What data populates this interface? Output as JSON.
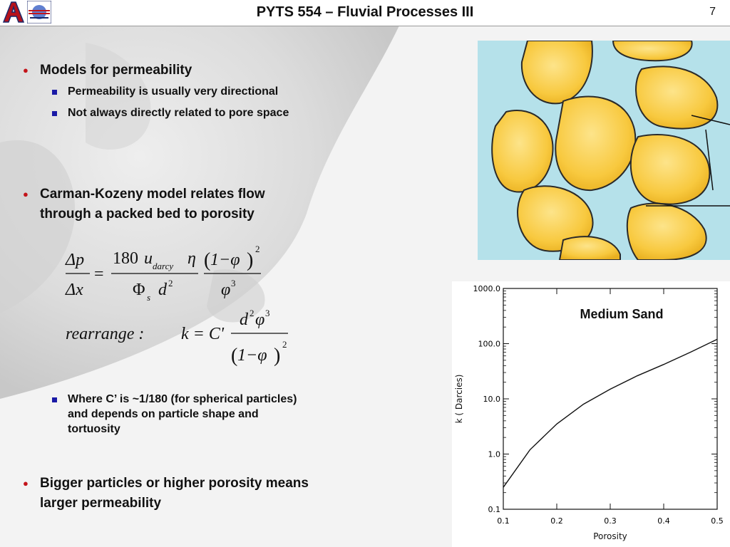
{
  "header": {
    "title": "PYTS 554 – Fluvial Processes III",
    "page_number": "7"
  },
  "bullets": [
    {
      "text": "Models for permeability",
      "sub": [
        "Permeability is usually very directional",
        "Not always directly related to pore space"
      ]
    },
    {
      "text": "Carman-Kozeny model relates flow through a packed bed to porosity"
    },
    {
      "sub": [
        "Where C’ is ~1/180 (for spherical particles) and depends on particle shape and tortuosity"
      ]
    },
    {
      "text": "Bigger particles or higher porosity means larger permeability"
    }
  ],
  "equation": {
    "dp": "Δp",
    "dx": "Δx",
    "eq": "=",
    "num180": "180",
    "u": "u",
    "u_sub": "darcy",
    "eta": "η",
    "phi_s": "Φ",
    "s": "s",
    "d": "d",
    "two": "2",
    "three": "3",
    "one_minus_phi": "1−φ",
    "phi": "φ",
    "rearrange": "rearrange :",
    "k_eq": "k = C'"
  },
  "chart_data": {
    "type": "line",
    "title": "Medium Sand",
    "xlabel": "Porosity",
    "ylabel": "k ( Darcies)",
    "xlim": [
      0.1,
      0.5
    ],
    "ylim": [
      0.1,
      1000.0
    ],
    "yscale": "log",
    "xticks": [
      "0.1",
      "0.2",
      "0.3",
      "0.4",
      "0.5"
    ],
    "yticks": [
      "0.1",
      "1.0",
      "10.0",
      "100.0",
      "1000.0"
    ],
    "series": [
      {
        "x": [
          0.1,
          0.15,
          0.2,
          0.25,
          0.3,
          0.35,
          0.4,
          0.45,
          0.5
        ],
        "y": [
          0.25,
          1.2,
          3.5,
          8.0,
          15.0,
          26.0,
          42.0,
          70.0,
          120.0
        ]
      }
    ]
  },
  "colors": {
    "bullet_dot": "#c3141a",
    "bullet_square": "#1a1aa6",
    "water": "#a9dbe6",
    "grain": "#f7c843"
  }
}
